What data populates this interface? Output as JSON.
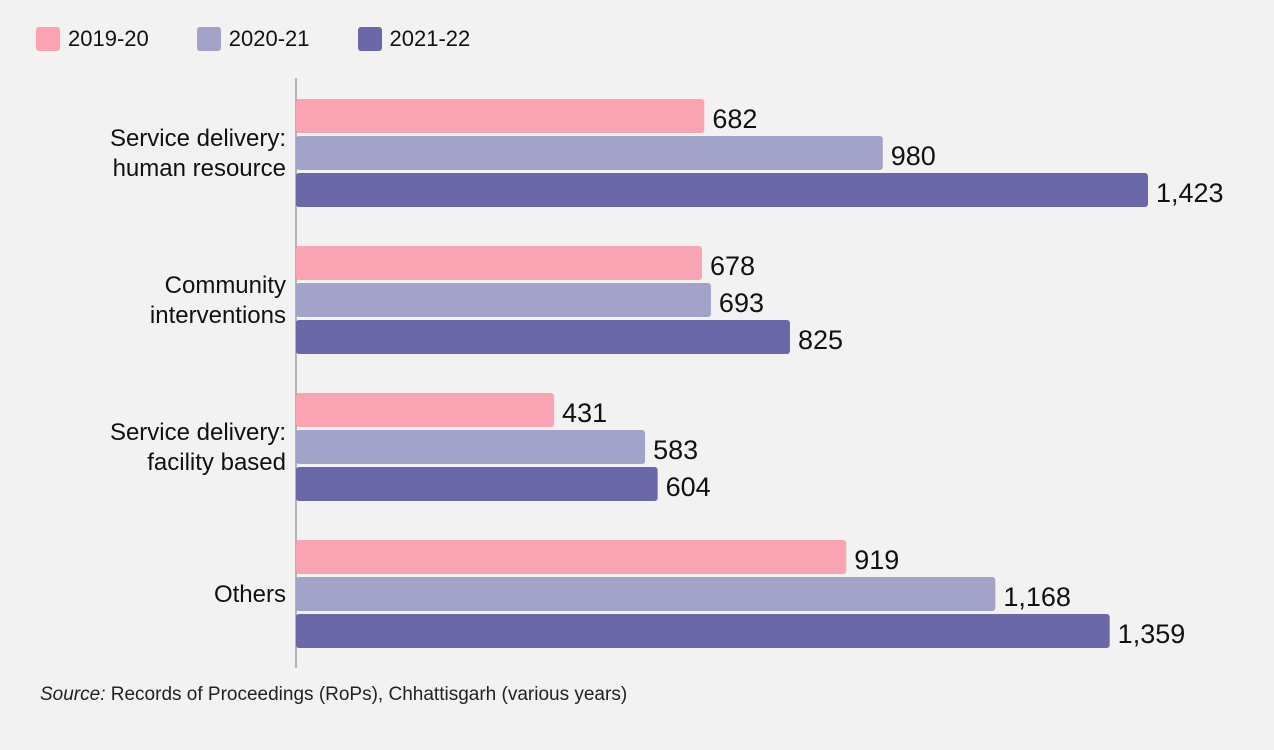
{
  "chart_data": {
    "type": "bar",
    "orientation": "horizontal",
    "categories": [
      [
        "Service delivery:",
        "human resource"
      ],
      [
        "Community",
        "interventions"
      ],
      [
        "Service delivery:",
        "facility based"
      ],
      [
        "Others"
      ]
    ],
    "series": [
      {
        "name": "2019-20",
        "color": "#f9a3b3",
        "values": [
          682,
          678,
          431,
          919
        ],
        "labels": [
          "682",
          "678",
          "431",
          "919"
        ]
      },
      {
        "name": "2020-21",
        "color": "#a3a3c9",
        "values": [
          980,
          693,
          583,
          1168
        ],
        "labels": [
          "980",
          "693",
          "583",
          "1,168"
        ]
      },
      {
        "name": "2021-22",
        "color": "#6a68a7",
        "values": [
          1423,
          825,
          604,
          1359
        ],
        "labels": [
          "1,423",
          "825",
          "604",
          "1,359"
        ]
      }
    ],
    "xlim": [
      0,
      1423
    ],
    "grid": false,
    "legend": "top-left"
  },
  "source": {
    "label": "Source:",
    "text": " Records of Proceedings (RoPs), Chhattisgarh (various years)"
  }
}
